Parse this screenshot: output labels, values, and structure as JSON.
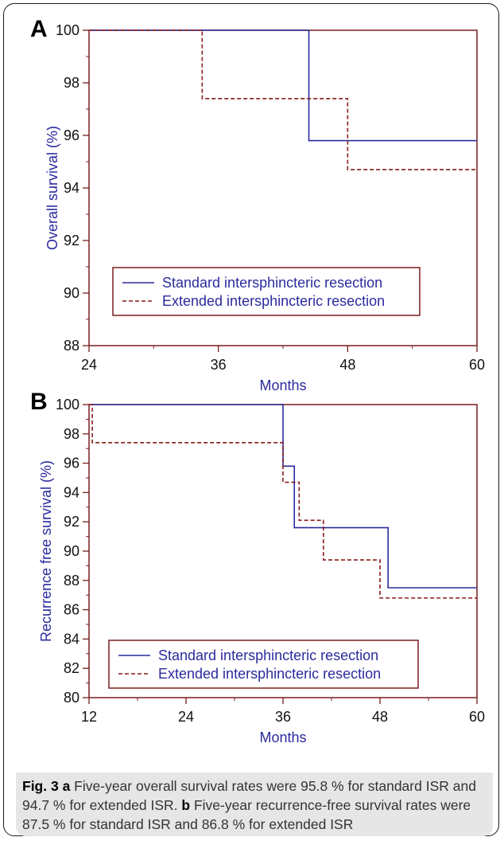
{
  "panels": [
    {
      "letter": "A",
      "chart_data": {
        "type": "line",
        "title": "",
        "xlabel": "Months",
        "ylabel": "Overall survival (%)",
        "xlim": [
          24,
          60
        ],
        "ylim": [
          88,
          100
        ],
        "xticks": [
          24,
          36,
          48,
          60
        ],
        "yticks": [
          88,
          90,
          92,
          94,
          96,
          98,
          100
        ],
        "step": true,
        "legend_position": "lower-left",
        "series": [
          {
            "name": "Standard intersphincteric resection",
            "style": "solid",
            "color": "#2b2b9e",
            "x": [
              24,
              44.4,
              60
            ],
            "y": [
              100,
              95.8,
              95.8
            ]
          },
          {
            "name": "Extended intersphincteric resection",
            "style": "dashed",
            "color": "#8b1a1a",
            "x": [
              24,
              34.5,
              48,
              60
            ],
            "y": [
              100,
              97.4,
              94.7,
              94.7
            ]
          }
        ]
      }
    },
    {
      "letter": "B",
      "chart_data": {
        "type": "line",
        "title": "",
        "xlabel": "Months",
        "ylabel": "Recurrence free survival (%)",
        "xlim": [
          12,
          60
        ],
        "ylim": [
          80,
          100
        ],
        "xticks": [
          12,
          24,
          36,
          48,
          60
        ],
        "yticks": [
          80,
          82,
          84,
          86,
          88,
          90,
          92,
          94,
          96,
          98,
          100
        ],
        "step": true,
        "legend_position": "lower-left",
        "series": [
          {
            "name": "Standard intersphincteric resection",
            "style": "solid",
            "color": "#2b2b9e",
            "x": [
              12,
              36,
              37.4,
              49,
              60
            ],
            "y": [
              100,
              95.8,
              91.6,
              87.5,
              87.5
            ]
          },
          {
            "name": "Extended intersphincteric resection",
            "style": "dashed",
            "color": "#8b1a1a",
            "x": [
              12,
              12.4,
              36,
              38,
              41,
              48,
              60
            ],
            "y": [
              100,
              97.4,
              94.7,
              92.1,
              89.4,
              86.8,
              86.8
            ]
          }
        ]
      }
    }
  ],
  "caption": {
    "fig_label": "Fig. 3",
    "a_label": "a",
    "a_text": " Five-year overall survival rates were 95.8 % for standard ISR and 94.7 % for extended ISR. ",
    "b_label": "b",
    "b_text": " Five-year recurrence-free survival rates were 87.5 % for standard ISR and 86.8 % for extended ISR"
  }
}
